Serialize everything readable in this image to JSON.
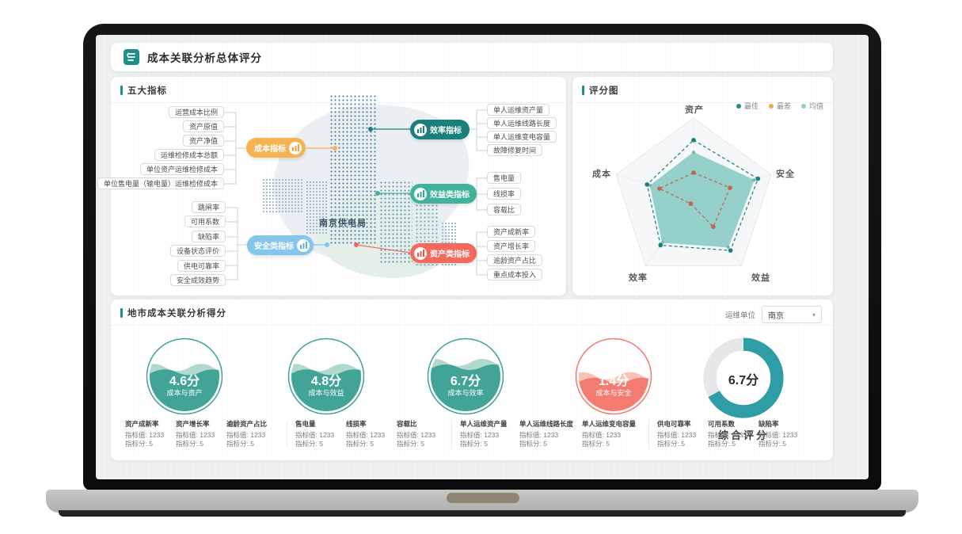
{
  "app": {
    "title": "成本关联分析总体评分"
  },
  "panels": {
    "indicators": {
      "title": "五大指标"
    },
    "score_chart": {
      "title": "评分图"
    },
    "city_score": {
      "title": "地市成本关联分析得分"
    }
  },
  "filter": {
    "label": "运维单位",
    "value": "南京",
    "caret": "▾"
  },
  "mindmap": {
    "center": "南京供电局",
    "branches": [
      {
        "name": "成本指标",
        "color": "#f6b352",
        "leaves": [
          "运营成本比例",
          "资产原值",
          "资产净值",
          "运维检修成本总额",
          "单位资产运维检修成本",
          "单位售电量（输电量）运维检修成本"
        ]
      },
      {
        "name": "安全类指标",
        "color": "#85c6ee",
        "leaves": [
          "跳闸率",
          "可用系数",
          "缺陷率",
          "设备状态评价",
          "供电可靠率",
          "安全成效趋势"
        ]
      },
      {
        "name": "效率指标",
        "color": "#1b7f7d",
        "leaves": [
          "单人运维资产量",
          "单人运维线路长度",
          "单人运维变电容量",
          "故障修复时间"
        ]
      },
      {
        "name": "效益类指标",
        "color": "#41b39a",
        "leaves": [
          "售电量",
          "线损率",
          "容载比"
        ]
      },
      {
        "name": "资产类指标",
        "color": "#f4685d",
        "leaves": [
          "资产成新率",
          "资产增长率",
          "逾龄资产占比",
          "重点成本投入"
        ]
      }
    ]
  },
  "chart_data": [
    {
      "type": "radar",
      "title": "评分图",
      "categories": [
        "资产",
        "安全",
        "效益",
        "效率",
        "成本"
      ],
      "range": [
        0,
        10
      ],
      "legend_position": "top-right",
      "legend_colors": [
        "#2b8c89",
        "#f0a84e",
        "#8fd0c8"
      ],
      "series": [
        {
          "name": "最佳",
          "style": "dashed-line",
          "color": "#17807d",
          "values": [
            7.3,
            8.3,
            7.7,
            6.9,
            6.0
          ]
        },
        {
          "name": "最差",
          "style": "dashed-line",
          "color": "#c0674f",
          "values": [
            3.3,
            4.7,
            4.1,
            0.6,
            4.4
          ]
        },
        {
          "name": "均值",
          "style": "filled-area",
          "color": "#7fc8c0",
          "values": [
            5.8,
            7.8,
            7.2,
            6.5,
            5.6
          ]
        }
      ]
    },
    {
      "type": "gauge-liquid",
      "items": [
        {
          "label": "成本与资产",
          "score_text": "4.6分",
          "value": 4.6,
          "fill_percent": 56,
          "color": "#3ea294",
          "light_color": "#9fcfc2"
        },
        {
          "label": "成本与效益",
          "score_text": "4.8分",
          "value": 4.8,
          "fill_percent": 56,
          "color": "#3ea294",
          "light_color": "#9fcfc2"
        },
        {
          "label": "成本与效率",
          "score_text": "6.7分",
          "value": 6.7,
          "fill_percent": 63,
          "color": "#3ea294",
          "light_color": "#9fcfc2"
        },
        {
          "label": "成本与安全",
          "score_text": "1.4分",
          "value": 1.4,
          "fill_percent": 44,
          "color": "#f4796c",
          "light_color": "#f8b3a9"
        }
      ]
    },
    {
      "type": "donut",
      "label": "综合评分",
      "score_text": "6.7分",
      "value": 6.7,
      "percent": 67,
      "color": "#2f9da5",
      "track_color": "#e7e7e9"
    }
  ],
  "stats": {
    "groups": [
      {
        "items": [
          {
            "name": "资产成新率",
            "value": "指标值: 1233",
            "score": "指标分: 5"
          },
          {
            "name": "资产增长率",
            "value": "指标值: 1233",
            "score": "指标分: 5"
          },
          {
            "name": "逾龄资产占比",
            "value": "指标值: 1233",
            "score": "指标分: 5"
          }
        ]
      },
      {
        "items": [
          {
            "name": "售电量",
            "value": "指标值: 1233",
            "score": "指标分: 5"
          },
          {
            "name": "线损率",
            "value": "指标值: 1233",
            "score": "指标分: 5"
          },
          {
            "name": "容载比",
            "value": "指标值: 1233",
            "score": "指标分: 5"
          }
        ]
      },
      {
        "items": [
          {
            "name": "单人运维资产量",
            "value": "指标值: 1233",
            "score": "指标分: 5"
          },
          {
            "name": "单人运维线路长度",
            "value": "指标值: 1233",
            "score": "指标分: 5"
          },
          {
            "name": "单人运维变电容量",
            "value": "指标值: 1233",
            "score": "指标分: 5"
          }
        ]
      },
      {
        "items": [
          {
            "name": "供电可靠率",
            "value": "指标值: 1233",
            "score": "指标分: 5"
          },
          {
            "name": "可用系数",
            "value": "指标值: 1233",
            "score": "指标分: 5"
          },
          {
            "name": "缺陷率",
            "value": "指标值: 1233",
            "score": "指标分: 5"
          }
        ]
      }
    ]
  }
}
